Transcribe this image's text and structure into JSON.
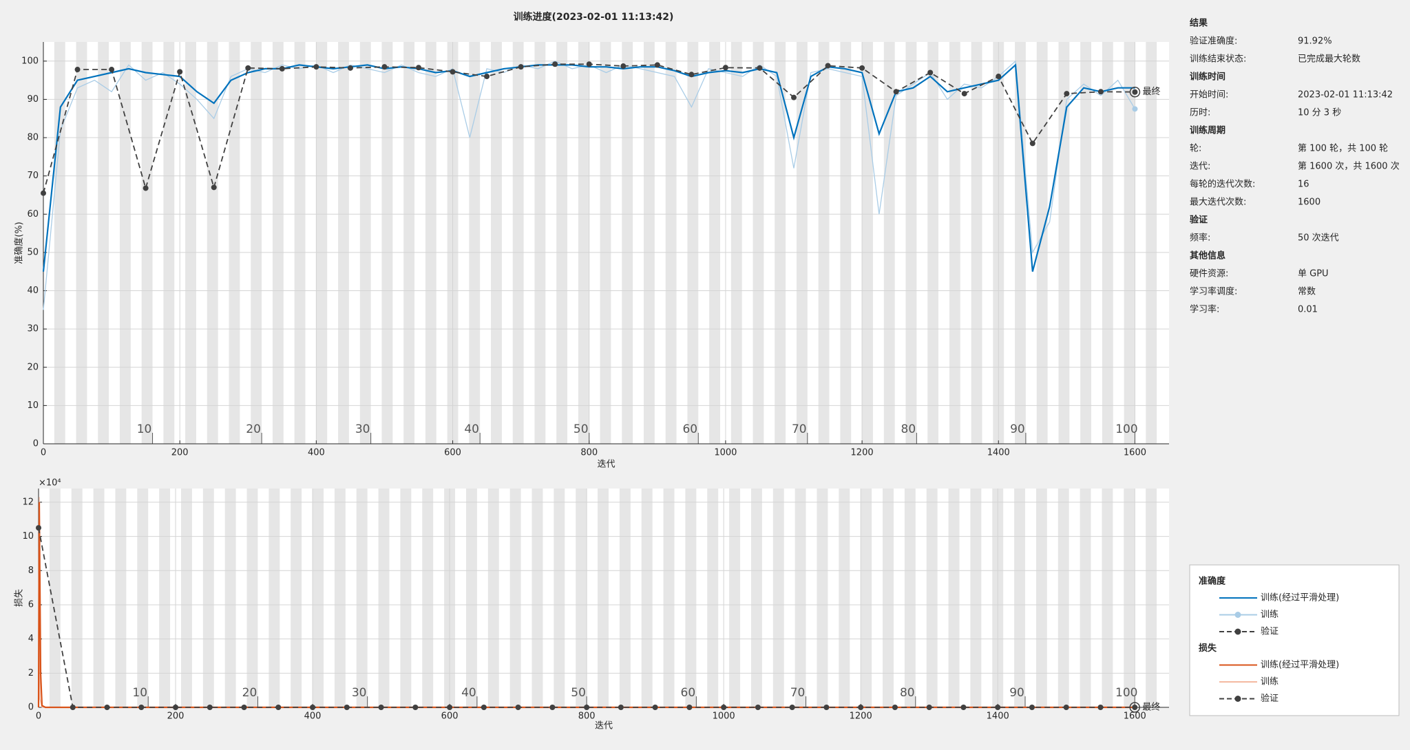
{
  "title": "训练进度(2023-02-01 11:13:42)",
  "chart_data": [
    {
      "type": "line",
      "legend_title": "准确度",
      "ylabel": "准确度(%)",
      "xlabel": "迭代",
      "final_label": "最终",
      "xlim": [
        0,
        1650
      ],
      "ylim": [
        0,
        105
      ],
      "grid": true,
      "xticks": [
        0,
        200,
        400,
        600,
        800,
        1000,
        1200,
        1400,
        1600
      ],
      "yticks": [
        0,
        10,
        20,
        30,
        40,
        50,
        60,
        70,
        80,
        90,
        100
      ],
      "epoch_ticks": [
        {
          "value": 160,
          "label": "10"
        },
        {
          "value": 320,
          "label": "20"
        },
        {
          "value": 480,
          "label": "30"
        },
        {
          "value": 640,
          "label": "40"
        },
        {
          "value": 800,
          "label": "50"
        },
        {
          "value": 960,
          "label": "60"
        },
        {
          "value": 1120,
          "label": "70"
        },
        {
          "value": 1280,
          "label": "80"
        },
        {
          "value": 1440,
          "label": "90"
        },
        {
          "value": 1600,
          "label": "100"
        }
      ],
      "series": [
        {
          "name": "训练(经过平滑处理)",
          "color": "#0072bd",
          "style": "solid",
          "markers": "none",
          "x": [
            0,
            25,
            50,
            75,
            100,
            125,
            150,
            175,
            200,
            225,
            250,
            275,
            300,
            325,
            350,
            375,
            400,
            425,
            450,
            475,
            500,
            525,
            550,
            575,
            600,
            625,
            650,
            675,
            700,
            725,
            750,
            775,
            800,
            825,
            850,
            875,
            900,
            925,
            950,
            975,
            1000,
            1025,
            1050,
            1075,
            1100,
            1125,
            1150,
            1175,
            1200,
            1225,
            1250,
            1275,
            1300,
            1325,
            1350,
            1375,
            1400,
            1425,
            1450,
            1475,
            1500,
            1525,
            1550,
            1575,
            1600
          ],
          "values": [
            45,
            88,
            95,
            96,
            97,
            98,
            97,
            96.5,
            96,
            92,
            89,
            95,
            97,
            98,
            98,
            99,
            98.5,
            98,
            98.5,
            99,
            98,
            98.5,
            98,
            97,
            97.5,
            96,
            97,
            98,
            98.5,
            99,
            99,
            99,
            98.5,
            98.5,
            98,
            98.5,
            98.5,
            97.5,
            96,
            97,
            97.5,
            97,
            98,
            97,
            80,
            96,
            98.5,
            98,
            97,
            81,
            92,
            93,
            96,
            92,
            93,
            94,
            95,
            99,
            45,
            62,
            88,
            93,
            92,
            93,
            93
          ]
        },
        {
          "name": "训练",
          "color": "#a9cce6",
          "style": "solid",
          "markers": "last",
          "x": [
            0,
            25,
            50,
            75,
            100,
            125,
            150,
            175,
            200,
            225,
            250,
            275,
            300,
            325,
            350,
            375,
            400,
            425,
            450,
            475,
            500,
            525,
            550,
            575,
            600,
            625,
            650,
            675,
            700,
            725,
            750,
            775,
            800,
            825,
            850,
            875,
            900,
            925,
            950,
            975,
            1000,
            1025,
            1050,
            1075,
            1100,
            1125,
            1150,
            1175,
            1200,
            1225,
            1250,
            1275,
            1300,
            1325,
            1350,
            1375,
            1400,
            1425,
            1450,
            1475,
            1500,
            1525,
            1550,
            1575,
            1600
          ],
          "values": [
            35,
            82,
            93,
            95,
            92,
            99,
            95,
            97,
            94,
            90,
            85,
            96,
            98,
            97,
            99,
            98,
            99,
            97,
            99,
            98,
            97,
            99,
            97,
            96,
            98,
            80,
            98,
            97,
            99,
            98,
            100,
            98,
            99,
            97,
            99,
            98,
            97,
            96,
            88,
            98,
            97,
            96,
            99,
            96,
            72,
            97,
            98,
            97,
            96,
            60,
            91,
            94,
            97,
            90,
            94,
            93,
            96,
            100,
            50,
            58,
            90,
            94,
            91,
            95,
            87.5
          ]
        },
        {
          "name": "验证",
          "color": "#404040",
          "style": "dashed",
          "markers": "all",
          "x": [
            0,
            50,
            100,
            150,
            200,
            250,
            300,
            350,
            400,
            450,
            500,
            550,
            600,
            650,
            700,
            750,
            800,
            850,
            900,
            950,
            1000,
            1050,
            1100,
            1150,
            1200,
            1250,
            1300,
            1350,
            1400,
            1450,
            1500,
            1550,
            1600
          ],
          "values": [
            65.5,
            97.8,
            97.8,
            66.8,
            97.2,
            67,
            98.2,
            98,
            98.5,
            98.2,
            98.5,
            98.3,
            97.2,
            96,
            98.5,
            99.2,
            99.2,
            98.7,
            99,
            96.5,
            98.3,
            98.2,
            90.5,
            98.8,
            98.2,
            92,
            97,
            91.5,
            96,
            78.5,
            91.5,
            92,
            91.92
          ]
        }
      ]
    },
    {
      "type": "line",
      "legend_title": "损失",
      "ylabel": "损失",
      "xlabel": "迭代",
      "final_label": "最终",
      "yscale_label": "×10⁴",
      "xlim": [
        0,
        1650
      ],
      "ylim": [
        0,
        12.8
      ],
      "grid": true,
      "xticks": [
        0,
        200,
        400,
        600,
        800,
        1000,
        1200,
        1400,
        1600
      ],
      "yticks": [
        0,
        2,
        4,
        6,
        8,
        10,
        12
      ],
      "epoch_ticks": [
        {
          "value": 160,
          "label": "10"
        },
        {
          "value": 320,
          "label": "20"
        },
        {
          "value": 480,
          "label": "30"
        },
        {
          "value": 640,
          "label": "40"
        },
        {
          "value": 800,
          "label": "50"
        },
        {
          "value": 960,
          "label": "60"
        },
        {
          "value": 1120,
          "label": "70"
        },
        {
          "value": 1280,
          "label": "80"
        },
        {
          "value": 1440,
          "label": "90"
        },
        {
          "value": 1600,
          "label": "100"
        }
      ],
      "series": [
        {
          "name": "训练(经过平滑处理)",
          "color": "#d95319",
          "style": "solid",
          "markers": "none",
          "x": [
            0,
            1,
            3,
            5,
            10,
            50,
            1600
          ],
          "values": [
            0,
            12,
            2,
            0.1,
            0,
            0,
            0
          ]
        },
        {
          "name": "训练",
          "color": "#f4b9a0",
          "style": "solid",
          "markers": "none",
          "x": [
            0,
            1,
            2,
            5,
            50,
            1600
          ],
          "values": [
            0,
            12.3,
            0.5,
            0,
            0,
            0
          ]
        },
        {
          "name": "验证",
          "color": "#404040",
          "style": "dashed",
          "markers": "all",
          "x": [
            0,
            50,
            100,
            150,
            200,
            250,
            300,
            350,
            400,
            450,
            500,
            550,
            600,
            650,
            700,
            750,
            800,
            850,
            900,
            950,
            1000,
            1050,
            1100,
            1150,
            1200,
            1250,
            1300,
            1350,
            1400,
            1450,
            1500,
            1550,
            1600
          ],
          "values": [
            10.5,
            0,
            0,
            0,
            0,
            0,
            0,
            0,
            0,
            0,
            0,
            0,
            0,
            0,
            0,
            0,
            0,
            0,
            0,
            0,
            0,
            0,
            0,
            0,
            0,
            0,
            0,
            0,
            0,
            0,
            0,
            0,
            0
          ]
        }
      ]
    }
  ],
  "info": {
    "sections": [
      {
        "title": "结果",
        "rows": [
          [
            "验证准确度:",
            "91.92%"
          ],
          [
            "训练结束状态:",
            "已完成最大轮数"
          ]
        ]
      },
      {
        "title": "训练时间",
        "rows": [
          [
            "开始时间:",
            "2023-02-01 11:13:42"
          ],
          [
            "历时:",
            "10 分 3 秒"
          ]
        ]
      },
      {
        "title": "训练周期",
        "rows": [
          [
            "轮:",
            "第 100 轮，共 100 轮"
          ],
          [
            "迭代:",
            "第 1600 次，共 1600 次"
          ],
          [
            "每轮的迭代次数:",
            "16"
          ],
          [
            "最大迭代次数:",
            "1600"
          ]
        ]
      },
      {
        "title": "验证",
        "rows": [
          [
            "频率:",
            "50 次迭代"
          ]
        ]
      },
      {
        "title": "其他信息",
        "rows": [
          [
            "硬件资源:",
            "单 GPU"
          ],
          [
            "学习率调度:",
            "常数"
          ],
          [
            "学习率:",
            "0.01"
          ]
        ]
      }
    ]
  }
}
